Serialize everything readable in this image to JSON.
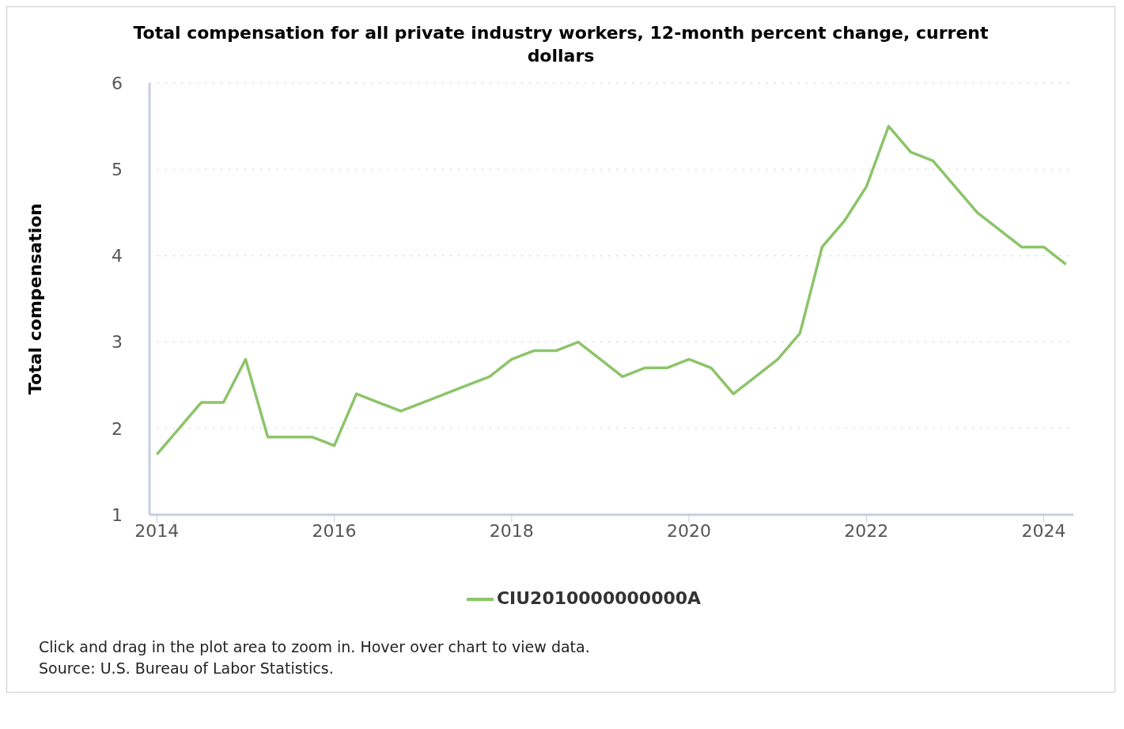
{
  "chart_data": {
    "type": "line",
    "title": "Total compensation for all private industry workers, 12-month percent change, current dollars",
    "ylabel": "Total compensation",
    "x": [
      "2014-01",
      "2014-04",
      "2014-07",
      "2014-10",
      "2015-01",
      "2015-04",
      "2015-07",
      "2015-10",
      "2016-01",
      "2016-04",
      "2016-07",
      "2016-10",
      "2017-01",
      "2017-04",
      "2017-07",
      "2017-10",
      "2018-01",
      "2018-04",
      "2018-07",
      "2018-10",
      "2019-01",
      "2019-04",
      "2019-07",
      "2019-10",
      "2020-01",
      "2020-04",
      "2020-07",
      "2020-10",
      "2021-01",
      "2021-04",
      "2021-07",
      "2021-10",
      "2022-01",
      "2022-04",
      "2022-07",
      "2022-10",
      "2023-01",
      "2023-04",
      "2023-07",
      "2023-10",
      "2024-01",
      "2024-04"
    ],
    "series": [
      {
        "name": "CIU2010000000000A",
        "color": "#8cc46a",
        "values": [
          1.7,
          2.0,
          2.3,
          2.3,
          2.8,
          1.9,
          1.9,
          1.9,
          1.8,
          2.4,
          2.3,
          2.2,
          2.3,
          2.4,
          2.5,
          2.6,
          2.8,
          2.9,
          2.9,
          3.0,
          2.8,
          2.6,
          2.7,
          2.7,
          2.8,
          2.7,
          2.4,
          2.6,
          2.8,
          3.1,
          4.1,
          4.4,
          4.8,
          5.5,
          5.2,
          5.1,
          4.8,
          4.5,
          4.3,
          4.1,
          4.1,
          3.9
        ]
      }
    ],
    "xlim": [
      "2013-12",
      "2024-05"
    ],
    "xticks": [
      "2014",
      "2016",
      "2018",
      "2020",
      "2022",
      "2024"
    ],
    "ylim": [
      1,
      6
    ],
    "yticks": [
      1,
      2,
      3,
      4,
      5,
      6
    ],
    "grid": "y",
    "legend": "bottom",
    "marker": "none",
    "line_style": "solid",
    "annotations": [
      "Click and drag in the plot area to zoom in. Hover over chart to view data.",
      "Source: U.S. Bureau of Labor Statistics."
    ]
  }
}
